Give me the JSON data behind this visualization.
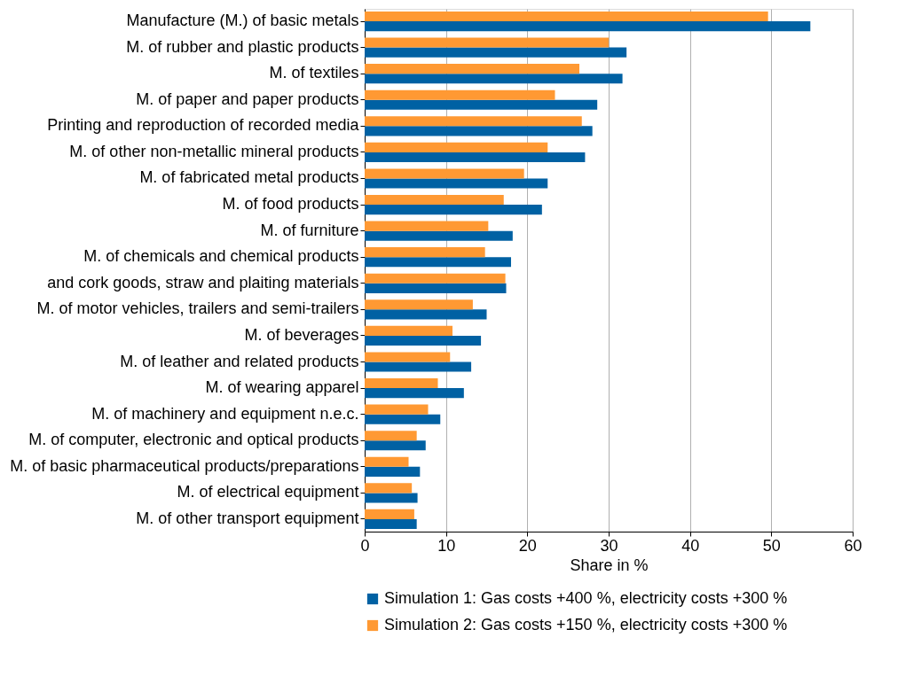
{
  "chart_data": {
    "type": "bar",
    "orientation": "horizontal",
    "xlabel": "Share in %",
    "categories": [
      "Manufacture (M.) of basic metals",
      "M. of rubber and plastic products",
      "M. of textiles",
      "M. of paper and paper products",
      "Printing and reproduction of recorded media",
      "M. of other non-metallic mineral products",
      "M. of fabricated metal products",
      "M. of food products",
      "M. of furniture",
      "M. of chemicals and chemical products",
      "and cork goods, straw and plaiting materials",
      "M. of motor vehicles, trailers and semi-trailers",
      "M. of beverages",
      "M. of leather and related products",
      "M. of wearing apparel",
      "M. of machinery and equipment n.e.c.",
      "M. of computer, electronic and optical products",
      "M. of basic pharmaceutical products/preparations",
      "M. of electrical equipment",
      "M. of other transport equipment"
    ],
    "series": [
      {
        "name": "Simulation 1: Gas costs +400 %, electricity costs +300 %",
        "color": "#0061a3",
        "values": [
          54.8,
          32.2,
          31.7,
          28.6,
          28.0,
          27.1,
          22.5,
          21.8,
          18.2,
          18.0,
          17.4,
          15.0,
          14.3,
          13.1,
          12.2,
          9.3,
          7.5,
          6.8,
          6.5,
          6.4
        ]
      },
      {
        "name": "Simulation 2: Gas costs +150 %, electricity costs +300 %",
        "color": "#ff9933",
        "values": [
          49.6,
          30.0,
          26.4,
          23.4,
          26.7,
          22.5,
          19.6,
          17.1,
          15.2,
          14.8,
          17.3,
          13.3,
          10.8,
          10.5,
          9.0,
          7.8,
          6.4,
          5.4,
          5.8,
          6.1
        ]
      }
    ],
    "xlim": [
      0,
      60
    ],
    "xticks": [
      0,
      10,
      20,
      30,
      40,
      50,
      60
    ],
    "grid": "x",
    "legend": "bottom"
  }
}
